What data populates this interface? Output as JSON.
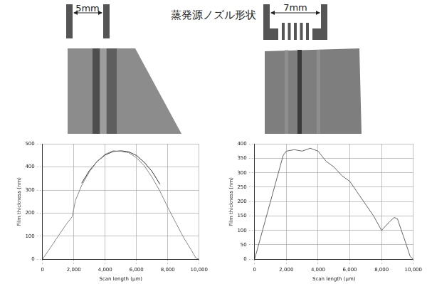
{
  "header": {
    "title": "蒸発源ノズル形状"
  },
  "nozzles": [
    {
      "label": "5mm"
    },
    {
      "label": "7mm"
    }
  ],
  "chart_data": [
    {
      "type": "line",
      "x_label": "Scan length (μm)",
      "y_label": "Film thickness (nm)",
      "xlim": [
        0,
        10000
      ],
      "xticks": [
        0,
        {
          "value": 2000,
          "label": "2,000"
        },
        {
          "value": 4000,
          "label": "4,000"
        },
        {
          "value": 6000,
          "label": "6,000"
        },
        {
          "value": 8000,
          "label": "8,000"
        },
        {
          "value": 10000,
          "label": "10,000"
        }
      ],
      "ylim": [
        0,
        500
      ],
      "yticks": [
        0,
        100,
        200,
        300,
        400,
        500
      ],
      "grid": true,
      "series": [
        {
          "color": "#888888",
          "x": [
            0,
            500,
            1000,
            1500,
            1900,
            2100,
            2500,
            3000,
            3500,
            4000,
            4500,
            5000,
            5500,
            6000,
            6500,
            7000,
            7500,
            8000,
            8500,
            9000,
            9500,
            9800,
            10000
          ],
          "values": [
            0,
            50,
            100,
            150,
            185,
            255,
            320,
            380,
            425,
            455,
            470,
            468,
            462,
            440,
            405,
            355,
            295,
            225,
            160,
            95,
            40,
            5,
            0
          ]
        },
        {
          "color": "#333333",
          "x": [
            2500,
            3000,
            3500,
            4000,
            4500,
            5000,
            5500,
            6000,
            6500,
            7000,
            7500
          ],
          "values": [
            330,
            385,
            425,
            452,
            467,
            470,
            466,
            450,
            420,
            380,
            325
          ]
        }
      ]
    },
    {
      "type": "line",
      "x_label": "Scan length (μm)",
      "y_label": "Film thickness (nm)",
      "xlim": [
        0,
        10000
      ],
      "xticks": [
        0,
        {
          "value": 2000,
          "label": "2,000"
        },
        {
          "value": 4000,
          "label": "4,000"
        },
        {
          "value": 6000,
          "label": "6,000"
        },
        {
          "value": 8000,
          "label": "8,000"
        },
        {
          "value": 10000,
          "label": "10,000"
        }
      ],
      "ylim": [
        0,
        400
      ],
      "yticks": [
        0,
        50,
        100,
        150,
        200,
        250,
        300,
        350,
        400
      ],
      "grid": true,
      "series": [
        {
          "color": "#666666",
          "x": [
            0,
            500,
            1000,
            1500,
            1800,
            2000,
            2500,
            3000,
            3500,
            4000,
            4500,
            5000,
            5500,
            6000,
            6500,
            7000,
            7500,
            8000,
            8500,
            8800,
            9000,
            9500,
            9800,
            10000
          ],
          "values": [
            0,
            100,
            200,
            300,
            360,
            375,
            380,
            375,
            385,
            375,
            340,
            320,
            290,
            270,
            230,
            190,
            150,
            100,
            130,
            145,
            140,
            60,
            10,
            0
          ]
        }
      ]
    }
  ]
}
